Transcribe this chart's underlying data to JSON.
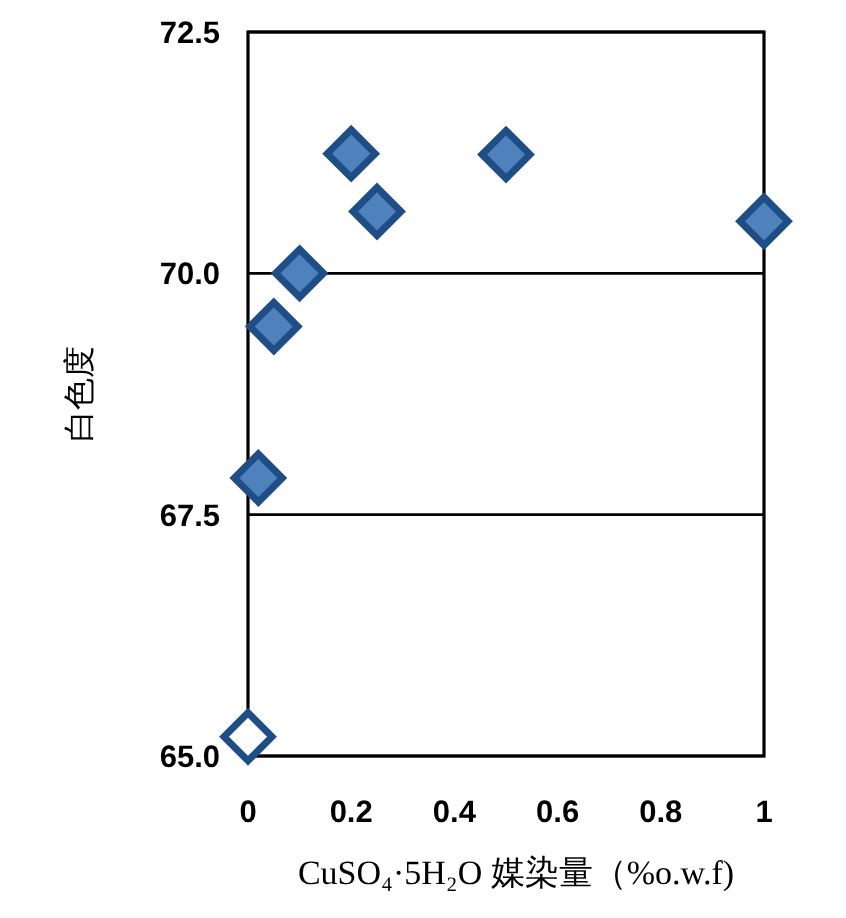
{
  "chart_data": {
    "type": "scatter",
    "xlabel": "CuSO₄·5H₂O 媒染量（%o.w.f)",
    "ylabel": "白色度",
    "xlim": [
      0,
      1
    ],
    "ylim": [
      65,
      72.5
    ],
    "xticks": [
      0,
      0.2,
      0.4,
      0.6,
      0.8,
      1
    ],
    "yticks": [
      {
        "value": 65,
        "label": "65.0"
      },
      {
        "value": 67.5,
        "label": "67.5"
      },
      {
        "value": 70,
        "label": "70.0"
      },
      {
        "value": 72.5,
        "label": "72.5"
      }
    ],
    "grid": "y",
    "marker": "diamond",
    "series": [
      {
        "color": "#ffffff",
        "x": [
          0
        ],
        "values": [
          65.2
        ]
      },
      {
        "color": "#4f81bd",
        "x": [
          0.02,
          0.05,
          0.1,
          0.2,
          0.25,
          0.5,
          1
        ],
        "values": [
          67.88,
          69.45,
          70.0,
          71.24,
          70.64,
          71.23,
          70.54
        ]
      }
    ]
  }
}
